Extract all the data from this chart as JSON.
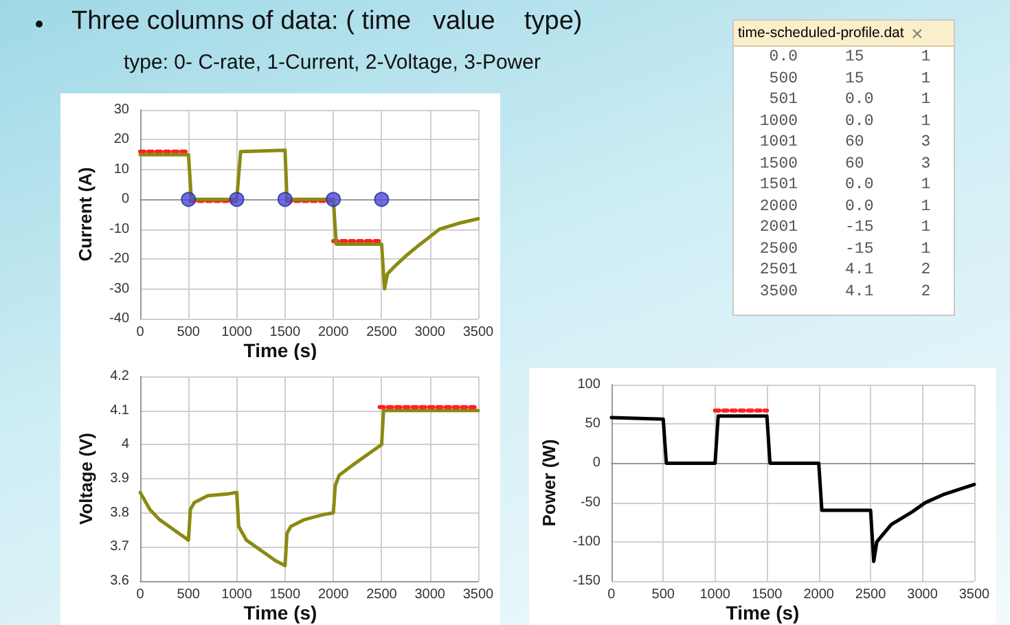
{
  "chart_data": [
    {
      "type": "other",
      "title": "Three columns of data: ( time   value    type)",
      "subtitle": "type: 0- C-rate, 1-Current, 2-Voltage, 3-Power"
    },
    {
      "type": "other",
      "title": "time-scheduled-profile.dat",
      "annotations": [
        "  0.0     15      1",
        "  500     15      1",
        "  501     0.0     1",
        " 1000     0.0     1",
        " 1001     60      3",
        " 1500     60      3",
        " 1501     0.0     1",
        " 2000     0.0     1",
        " 2001     -15     1",
        " 2500     -15     1",
        " 2501     4.1     2",
        " 3500     4.1     2"
      ]
    },
    {
      "type": "line",
      "xlabel": "Time (s)",
      "ylabel": "Current (A)",
      "xlim": [
        0,
        3500
      ],
      "xticks": [
        0,
        500,
        1000,
        1500,
        2000,
        2500,
        3000,
        3500
      ],
      "ylim": [
        -40,
        30
      ],
      "yticks": [
        -40,
        -30,
        -20,
        -10,
        0,
        10,
        20,
        30
      ],
      "grid": true,
      "series": [
        {
          "color": "#ff2020",
          "line_style": "dotted",
          "marker": "none",
          "x": [
            0,
            500
          ],
          "values": [
            16,
            16
          ]
        },
        {
          "color": "#ff2020",
          "line_style": "dotted",
          "marker": "none",
          "x": [
            520,
            1000
          ],
          "values": [
            -0.5,
            -0.5
          ]
        },
        {
          "color": "#ff2020",
          "line_style": "dotted",
          "marker": "none",
          "x": [
            1520,
            2000
          ],
          "values": [
            -0.5,
            -0.5
          ]
        },
        {
          "color": "#ff2020",
          "line_style": "dotted",
          "marker": "none",
          "x": [
            2000,
            2500
          ],
          "values": [
            -14,
            -14
          ]
        },
        {
          "color": "#8b8a12",
          "line_style": "solid",
          "marker": "none",
          "x": [
            0,
            500,
            530,
            1000,
            1040,
            1500,
            1520,
            2000,
            2030,
            2500,
            2530,
            2560,
            2650,
            2750,
            2900,
            3100,
            3300,
            3500
          ],
          "values": [
            15,
            15,
            0,
            0,
            16,
            16.5,
            0,
            0,
            -15,
            -15,
            -30,
            -25,
            -22,
            -19,
            -15,
            -10,
            -8,
            -6.5
          ]
        },
        {
          "type": "scatter",
          "color": "#4b4bd8",
          "marker": "circle",
          "x": [
            500,
            1000,
            1500,
            2000,
            2500
          ],
          "values": [
            0,
            0,
            0,
            0,
            0
          ]
        }
      ]
    },
    {
      "type": "line",
      "xlabel": "Time (s)",
      "ylabel": "Voltage (V)",
      "xlim": [
        0,
        3500
      ],
      "xticks": [
        0,
        500,
        1000,
        1500,
        2000,
        2500,
        3000,
        3500
      ],
      "ylim": [
        3.6,
        4.2
      ],
      "yticks": [
        3.6,
        3.7,
        3.8,
        3.9,
        4,
        4.1,
        4.2
      ],
      "grid": true,
      "series": [
        {
          "color": "#8b8a12",
          "line_style": "solid",
          "marker": "none",
          "x": [
            0,
            100,
            200,
            300,
            400,
            500,
            520,
            560,
            700,
            900,
            1000,
            1020,
            1100,
            1200,
            1300,
            1400,
            1500,
            1520,
            1560,
            1700,
            1900,
            2000,
            2020,
            2060,
            2200,
            2400,
            2500,
            2520,
            3500
          ],
          "values": [
            3.86,
            3.81,
            3.78,
            3.76,
            3.74,
            3.72,
            3.81,
            3.83,
            3.85,
            3.855,
            3.86,
            3.76,
            3.72,
            3.7,
            3.68,
            3.66,
            3.645,
            3.74,
            3.76,
            3.78,
            3.795,
            3.8,
            3.88,
            3.91,
            3.94,
            3.98,
            4.0,
            4.1,
            4.1
          ]
        },
        {
          "color": "#ff2020",
          "line_style": "dotted",
          "marker": "none",
          "x": [
            2480,
            3500
          ],
          "values": [
            4.11,
            4.11
          ]
        }
      ]
    },
    {
      "type": "line",
      "xlabel": "Time (s)",
      "ylabel": "Power (W)",
      "xlim": [
        0,
        3500
      ],
      "xticks": [
        0,
        500,
        1000,
        1500,
        2000,
        2500,
        3000,
        3500
      ],
      "ylim": [
        -150,
        100
      ],
      "yticks": [
        -150,
        -100,
        -50,
        0,
        50,
        100
      ],
      "grid": true,
      "series": [
        {
          "color": "#000000",
          "line_style": "solid",
          "marker": "none",
          "x": [
            0,
            500,
            530,
            1000,
            1030,
            1500,
            1530,
            2000,
            2030,
            2500,
            2530,
            2560,
            2700,
            2900,
            3030,
            3200,
            3500
          ],
          "values": [
            58,
            56,
            0,
            0,
            60,
            60,
            0,
            0,
            -60,
            -60,
            -125,
            -100,
            -78,
            -62,
            -50,
            -40,
            -27
          ]
        },
        {
          "color": "#ff2020",
          "line_style": "dotted",
          "marker": "none",
          "x": [
            1000,
            1500
          ],
          "values": [
            67,
            67
          ]
        }
      ]
    }
  ]
}
